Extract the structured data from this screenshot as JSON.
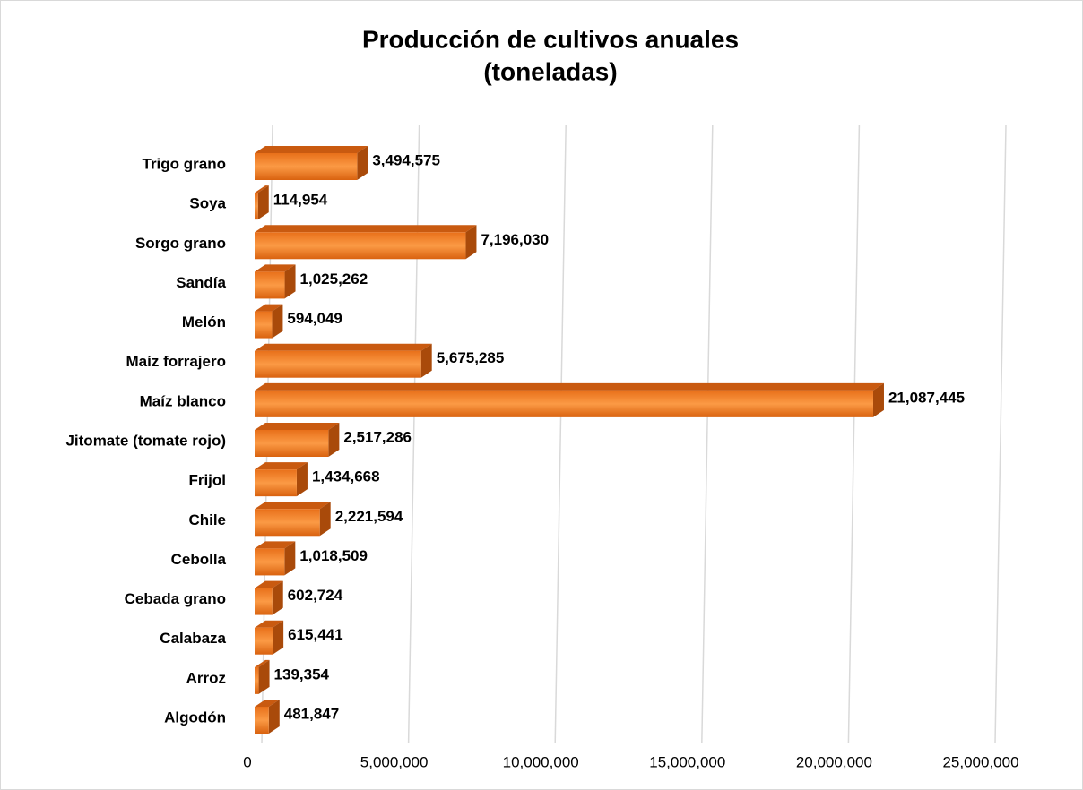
{
  "chart_data": {
    "type": "bar3d_horizontal",
    "title": "Producción de cultivos anuales",
    "subtitle": "(toneladas)",
    "categories": [
      "Trigo grano",
      "Soya",
      "Sorgo grano",
      "Sandía",
      "Melón",
      "Maíz forrajero",
      "Maíz blanco",
      "Jitomate (tomate rojo)",
      "Frijol",
      "Chile",
      "Cebolla",
      "Cebada grano",
      "Calabaza",
      "Arroz",
      "Algodón"
    ],
    "values": [
      3494575,
      114954,
      7196030,
      1025262,
      594049,
      5675285,
      21087445,
      2517286,
      1434668,
      2221594,
      1018509,
      602724,
      615441,
      139354,
      481847
    ],
    "value_labels": [
      "3,494,575",
      "114,954",
      "7,196,030",
      "1,025,262",
      "594,049",
      "5,675,285",
      "21,087,445",
      "2,517,286",
      "1,434,668",
      "2,221,594",
      "1,018,509",
      "602,724",
      "615,441",
      "139,354",
      "481,847"
    ],
    "color": "#f07f1e",
    "xlim": [
      0,
      25000000
    ],
    "xticks": [
      0,
      {
        "value": 5000000,
        "label": "5,000,000"
      },
      {
        "value": 10000000,
        "label": "10,000,000"
      },
      {
        "value": 15000000,
        "label": "15,000,000"
      },
      {
        "value": 20000000,
        "label": "20,000,000"
      },
      {
        "value": 25000000,
        "label": "25,000,000"
      }
    ],
    "grid": true
  }
}
